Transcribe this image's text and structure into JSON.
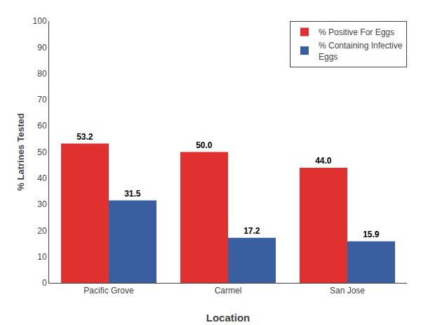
{
  "chart_data": {
    "type": "bar",
    "xlabel": "Location",
    "ylabel": "% Latrines Tested",
    "categories": [
      "Pacific Grove",
      "Carmel",
      "San Jose"
    ],
    "series": [
      {
        "name": "% Positive For Eggs",
        "color": "#E03030",
        "values": [
          53.2,
          50.0,
          44.0
        ],
        "value_labels": [
          "53.2",
          "50.0",
          "44.0"
        ]
      },
      {
        "name": "% Containing Infective\nEggs",
        "color": "#3A5FA0",
        "values": [
          31.5,
          17.2,
          15.9
        ],
        "value_labels": [
          "31.5",
          "17.2",
          "15.9"
        ]
      }
    ],
    "ylim": [
      0,
      100
    ],
    "yticks": [
      0,
      10,
      20,
      30,
      40,
      50,
      60,
      70,
      80,
      90,
      100
    ],
    "grid": false,
    "legend": "upper right",
    "data_labels": true
  }
}
